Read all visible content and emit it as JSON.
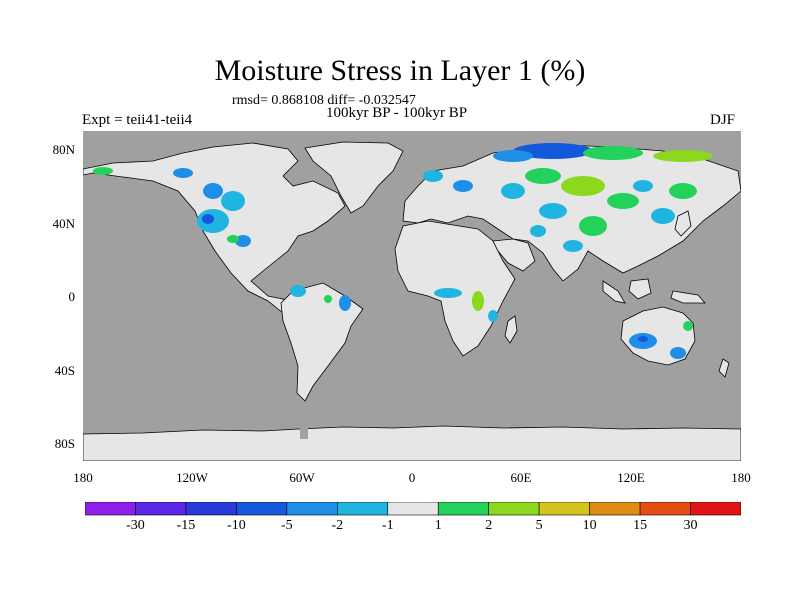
{
  "title": "Moisture Stress in Layer 1 (%)",
  "subtitle_stats": "rmsd= 0.868108 diff= -0.032547",
  "subtitle_period": "100kyr BP - 100kyr BP",
  "experiment": "Expt = teii41-teii4",
  "season": "DJF",
  "lat_labels": [
    "80N",
    "40N",
    "0",
    "40S",
    "80S"
  ],
  "lon_labels": [
    "180",
    "120W",
    "60W",
    "0",
    "60E",
    "120E",
    "180"
  ],
  "colorbar": {
    "labels": [
      "-30",
      "-15",
      "-10",
      "-5",
      "-2",
      "-1",
      "1",
      "2",
      "5",
      "10",
      "15",
      "30"
    ],
    "colors": [
      "#8f1ee8",
      "#5a28e6",
      "#2a3ad8",
      "#1458dc",
      "#1e8ee6",
      "#20b4e0",
      "#e6e6e6",
      "#22d25a",
      "#8cd81e",
      "#d6c41e",
      "#e08c14",
      "#e64e10",
      "#e31414"
    ]
  },
  "colors": {
    "ocean": "#a0a0a0",
    "land_neutral": "#e6e6e6",
    "coastline": "#000000"
  }
}
